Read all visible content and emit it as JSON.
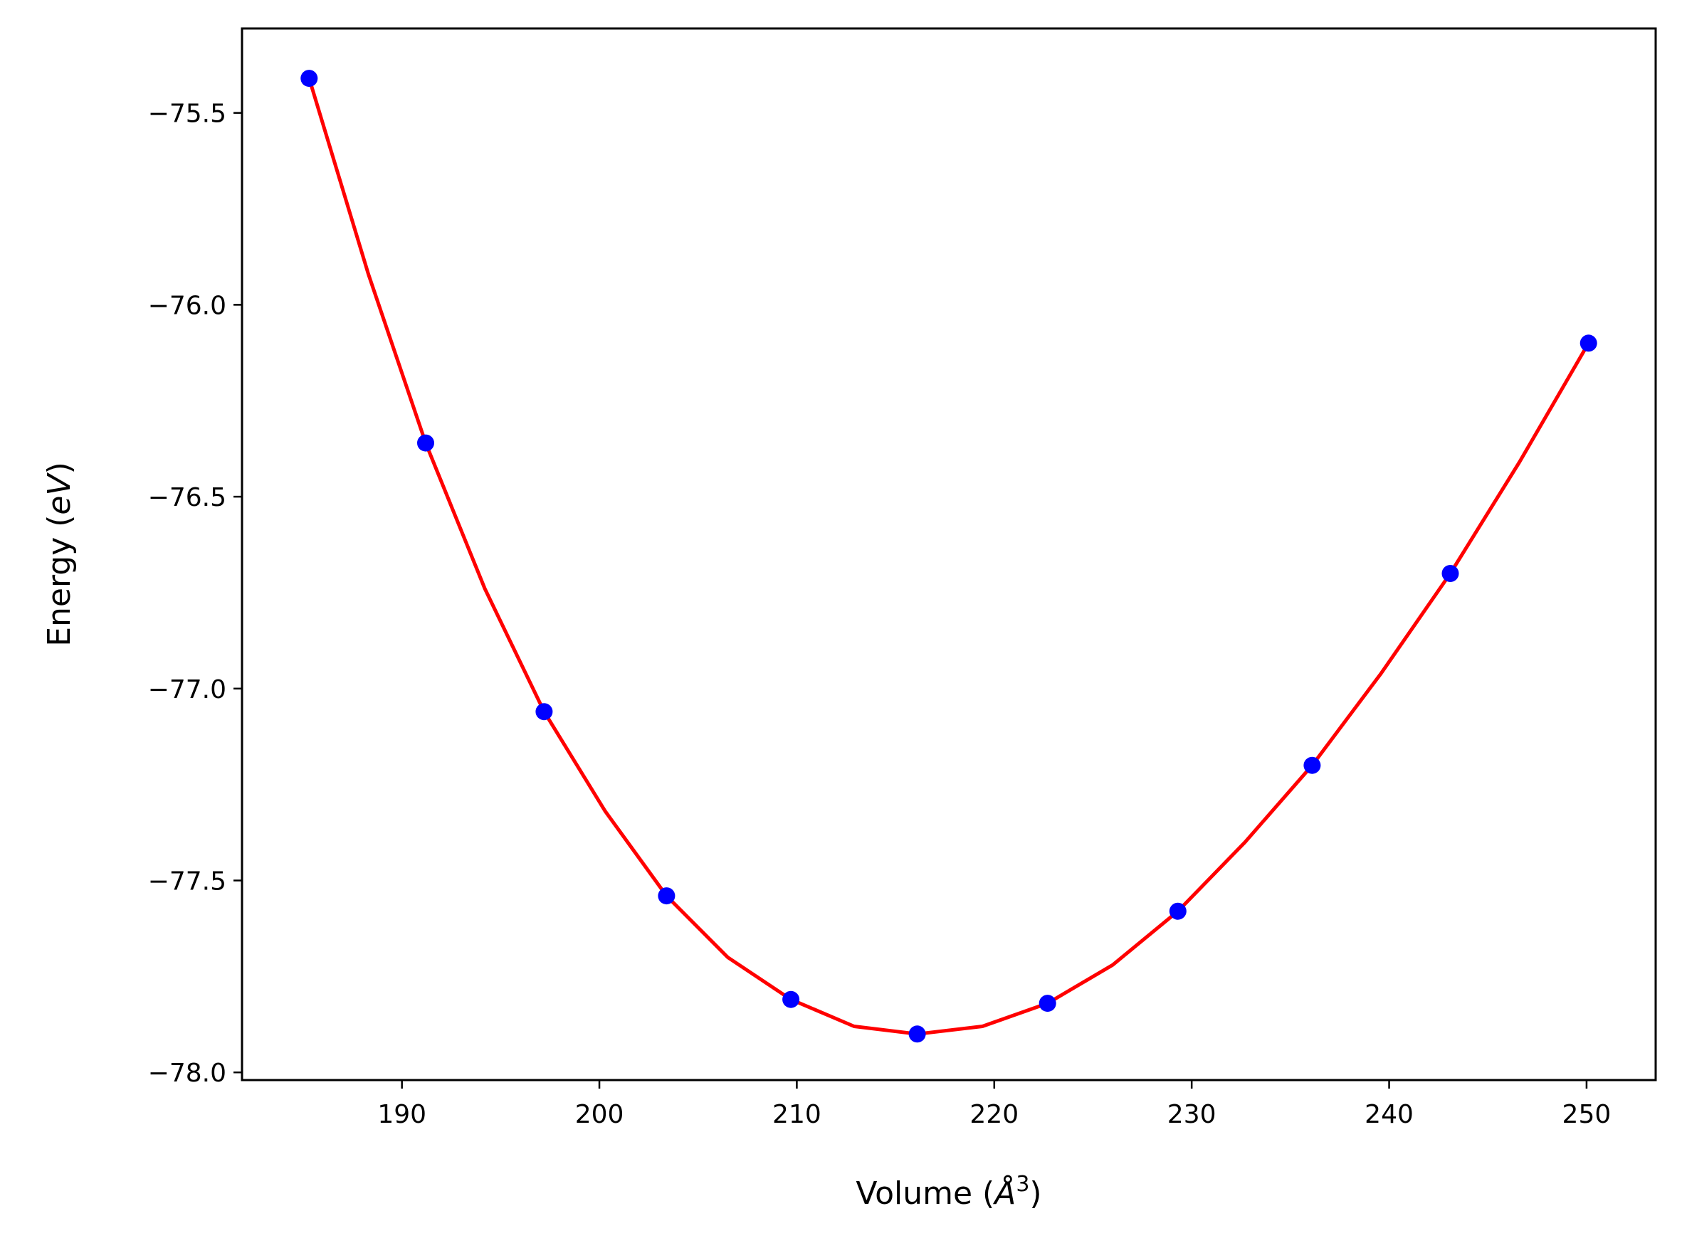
{
  "chart_data": {
    "type": "scatter",
    "xlabel": {
      "prefix": "Volume (",
      "italic": "Å",
      "sup": "3",
      "suffix": ")"
    },
    "ylabel": {
      "prefix": "Energy (",
      "italic": "eV",
      "suffix": ")"
    },
    "xlim": [
      181.9,
      253.5
    ],
    "ylim": [
      -78.02,
      -75.28
    ],
    "x_ticks": [
      190,
      200,
      210,
      220,
      230,
      240,
      250
    ],
    "y_ticks": [
      -75.5,
      -76.0,
      -76.5,
      -77.0,
      -77.5,
      -78.0
    ],
    "y_tick_labels": [
      "−75.5",
      "−76.0",
      "−76.5",
      "−77.0",
      "−77.5",
      "−78.0"
    ],
    "grid": false,
    "series": [
      {
        "kind": "points",
        "color": "#0000ff",
        "x": [
          185.3,
          191.2,
          197.2,
          203.4,
          209.7,
          216.1,
          222.7,
          229.3,
          236.1,
          243.1,
          250.1
        ],
        "y": [
          -75.41,
          -76.36,
          -77.06,
          -77.54,
          -77.81,
          -77.9,
          -77.82,
          -77.58,
          -77.2,
          -76.7,
          -76.1
        ]
      },
      {
        "kind": "line",
        "color": "#ff0000",
        "x": [
          185.3,
          188.3,
          191.2,
          194.2,
          197.2,
          200.3,
          203.4,
          206.5,
          209.7,
          212.9,
          216.1,
          219.4,
          222.7,
          226.0,
          229.3,
          232.7,
          236.1,
          239.6,
          243.1,
          246.6,
          250.1
        ],
        "y": [
          -75.41,
          -75.92,
          -76.36,
          -76.74,
          -77.06,
          -77.32,
          -77.54,
          -77.7,
          -77.81,
          -77.88,
          -77.9,
          -77.88,
          -77.82,
          -77.72,
          -77.58,
          -77.4,
          -77.2,
          -76.96,
          -76.7,
          -76.41,
          -76.1
        ]
      }
    ]
  }
}
